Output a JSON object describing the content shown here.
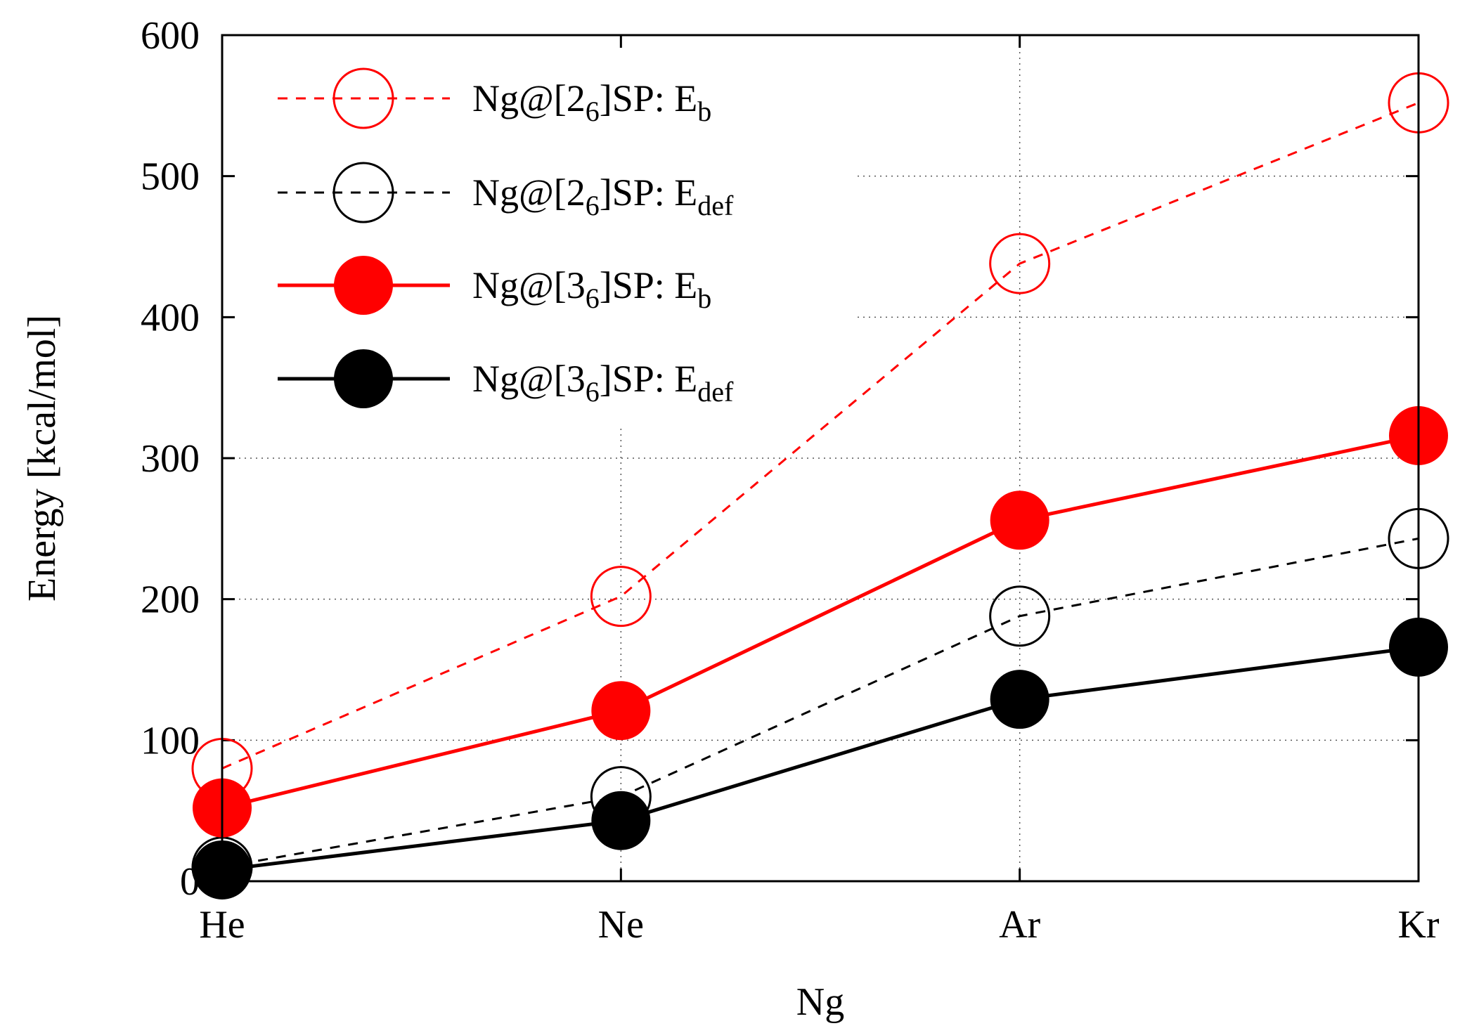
{
  "chart_data": {
    "type": "line",
    "title": "",
    "xlabel": "Ng",
    "ylabel": "Energy [kcal/mol]",
    "categories": [
      "He",
      "Ne",
      "Ar",
      "Kr"
    ],
    "ylim": [
      0,
      600
    ],
    "yticks": [
      0,
      100,
      200,
      300,
      400,
      500,
      600
    ],
    "grid": true,
    "legend_position": "top-left",
    "series": [
      {
        "name": "Ng@[2_6]SP: E_b",
        "legend": {
          "prefix": "Ng@[2",
          "sub1": "6",
          "middle": "]SP: E",
          "sub2": "b"
        },
        "values": [
          80,
          202,
          438,
          552
        ],
        "color": "#ff0000",
        "line_style": "dashed",
        "marker": "open-circle"
      },
      {
        "name": "Ng@[2_6]SP: E_def",
        "legend": {
          "prefix": "Ng@[2",
          "sub1": "6",
          "middle": "]SP: E",
          "sub2": "def"
        },
        "values": [
          10,
          60,
          188,
          243
        ],
        "color": "#000000",
        "line_style": "dashed",
        "marker": "open-circle"
      },
      {
        "name": "Ng@[3_6]SP: E_b",
        "legend": {
          "prefix": "Ng@[3",
          "sub1": "6",
          "middle": "]SP: E",
          "sub2": "b"
        },
        "values": [
          52,
          121,
          256,
          316
        ],
        "color": "#ff0000",
        "line_style": "solid",
        "marker": "filled-circle"
      },
      {
        "name": "Ng@[3_6]SP: E_def",
        "legend": {
          "prefix": "Ng@[3",
          "sub1": "6",
          "middle": "]SP: E",
          "sub2": "def"
        },
        "values": [
          8,
          43,
          129,
          166
        ],
        "color": "#000000",
        "line_style": "solid",
        "marker": "filled-circle"
      }
    ]
  }
}
